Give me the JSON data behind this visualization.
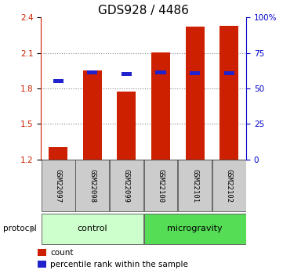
{
  "title": "GDS928 / 4486",
  "samples": [
    "GSM22097",
    "GSM22098",
    "GSM22099",
    "GSM22100",
    "GSM22101",
    "GSM22102"
  ],
  "bar_heights": [
    1.305,
    1.95,
    1.775,
    2.105,
    2.325,
    2.33
  ],
  "percentile_values": [
    1.865,
    1.935,
    1.92,
    1.938,
    1.928,
    1.932
  ],
  "bar_color": "#cc2000",
  "dot_color": "#2222cc",
  "ylim_left": [
    1.2,
    2.4
  ],
  "ylim_right": [
    0,
    100
  ],
  "yticks_left": [
    1.2,
    1.5,
    1.8,
    2.1,
    2.4
  ],
  "yticks_right": [
    0,
    25,
    50,
    75,
    100
  ],
  "ytick_labels_right": [
    "0",
    "25",
    "50",
    "75",
    "100%"
  ],
  "control_color": "#ccffcc",
  "microgravity_color": "#55dd55",
  "protocol_label": "protocol",
  "control_label": "control",
  "microgravity_label": "microgravity",
  "legend_count": "count",
  "legend_percentile": "percentile rank within the sample",
  "bar_width": 0.55,
  "baseline": 1.2,
  "grid_color": "#888888",
  "tick_color_left": "#cc2000",
  "tick_color_right": "#0000cc",
  "title_fontsize": 11,
  "axis_fontsize": 7.5,
  "sample_fontsize": 6.5,
  "legend_fontsize": 7.5
}
